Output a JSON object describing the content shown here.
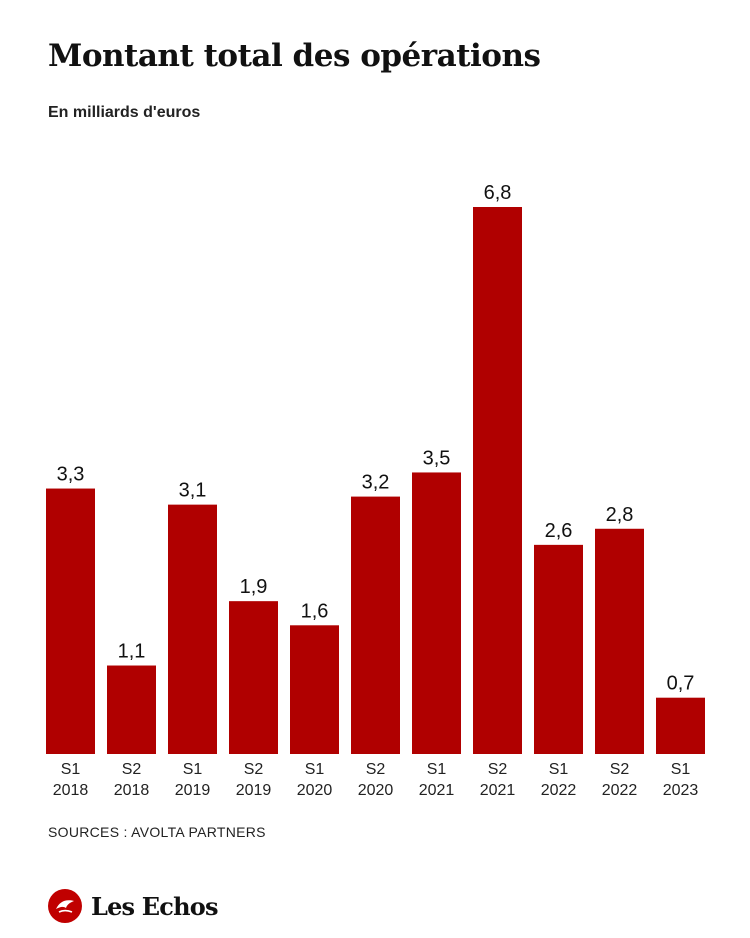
{
  "header": {
    "title": "Montant total des opérations",
    "subtitle": "En milliards d'euros"
  },
  "footer": {
    "source": "SOURCES : AVOLTA PARTNERS",
    "logo_text": "Les Echos",
    "logo_icon": "les-echos-logo-icon"
  },
  "chart_data": {
    "type": "bar",
    "title": "Montant total des opérations",
    "subtitle": "En milliards d'euros",
    "categories": [
      [
        "S1",
        "2018"
      ],
      [
        "S2",
        "2018"
      ],
      [
        "S1",
        "2019"
      ],
      [
        "S2",
        "2019"
      ],
      [
        "S1",
        "2020"
      ],
      [
        "S2",
        "2020"
      ],
      [
        "S1",
        "2021"
      ],
      [
        "S2",
        "2021"
      ],
      [
        "S1",
        "2022"
      ],
      [
        "S2",
        "2022"
      ],
      [
        "S1",
        "2023"
      ]
    ],
    "values": [
      3.3,
      1.1,
      3.1,
      1.9,
      1.6,
      3.2,
      3.5,
      6.8,
      2.6,
      2.8,
      0.7
    ],
    "value_labels": [
      "3,3",
      "1,1",
      "3,1",
      "1,9",
      "1,6",
      "3,2",
      "3,5",
      "6,8",
      "2,6",
      "2,8",
      "0,7"
    ],
    "ylim": [
      0,
      6.8
    ],
    "grid": false,
    "legend": "none",
    "bar_color": "#b00000"
  }
}
